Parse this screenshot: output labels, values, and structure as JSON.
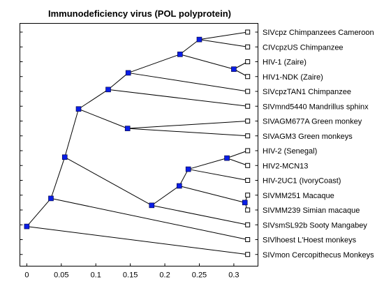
{
  "title": "Immunodeficiency virus (POL polyprotein)",
  "chart_data": {
    "type": "dendrogram",
    "title": "Immunodeficiency virus (POL polyprotein)",
    "xlim": [
      -0.01,
      0.335
    ],
    "xticks": [
      0,
      0.05,
      0.1,
      0.15,
      0.2,
      0.25,
      0.3
    ],
    "xtick_labels": [
      "0",
      "0.05",
      "0.1",
      "0.15",
      "0.2",
      "0.25",
      "0.3"
    ],
    "leaf_x": 0.32,
    "leaves": [
      "SIVcpz Chimpanzees Cameroon",
      "CIVcpzUS Chimpanzee",
      "HIV-1 (Zaire)",
      "HIV1-NDK (Zaire)",
      "SIVcpzTAN1 Chimpanzee",
      "SIVmnd5440 Mandrillus sphinx",
      "SIVAGM677A Green monkey",
      "SIVAGM3 Green monkeys",
      "HIV-2 (Senegal)",
      "HIV2-MCN13",
      "HIV-2UC1 (IvoryCoast)",
      "SIVMM251 Macaque",
      "SIVMM239 Simian macaque",
      "SIVsmSL92b Sooty Mangabey",
      "SIVlhoest L'Hoest monkeys",
      "SIVmon Cercopithecus Monkeys"
    ],
    "internal_nodes": [
      {
        "name": "n1",
        "x": 0.25,
        "children": [
          "L0",
          "L1"
        ]
      },
      {
        "name": "n2",
        "x": 0.3,
        "children": [
          "L2",
          "L3"
        ]
      },
      {
        "name": "n3",
        "x": 0.222,
        "children": [
          "n1",
          "n2"
        ]
      },
      {
        "name": "n4",
        "x": 0.147,
        "children": [
          "n3",
          "L4"
        ]
      },
      {
        "name": "n5",
        "x": 0.118,
        "children": [
          "n4",
          "L5"
        ]
      },
      {
        "name": "n6",
        "x": 0.146,
        "children": [
          "L6",
          "L7"
        ]
      },
      {
        "name": "n7",
        "x": 0.075,
        "children": [
          "n5",
          "n6"
        ]
      },
      {
        "name": "n8",
        "x": 0.29,
        "children": [
          "L8",
          "L9"
        ]
      },
      {
        "name": "n9",
        "x": 0.316,
        "children": [
          "L11",
          "L12"
        ]
      },
      {
        "name": "n10",
        "x": 0.234,
        "children": [
          "n8",
          "L10"
        ]
      },
      {
        "name": "n11",
        "x": 0.221,
        "children": [
          "n10",
          "n9"
        ]
      },
      {
        "name": "n12",
        "x": 0.181,
        "children": [
          "n11",
          "L13"
        ]
      },
      {
        "name": "n13",
        "x": 0.055,
        "children": [
          "n7",
          "n12"
        ]
      },
      {
        "name": "n14",
        "x": 0.035,
        "children": [
          "n13",
          "L14"
        ]
      },
      {
        "name": "n15",
        "x": 0.0,
        "children": [
          "n14",
          "L15"
        ]
      }
    ]
  }
}
